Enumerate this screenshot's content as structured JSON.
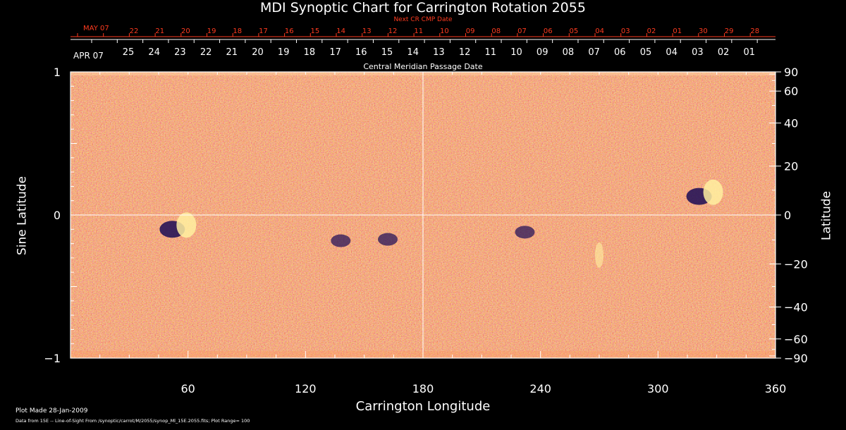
{
  "chart_data": {
    "type": "heatmap",
    "title": "MDI Synoptic Chart for Carrington Rotation 2055",
    "xlabel": "Carrington Longitude",
    "ylabel_left": "Sine Latitude",
    "ylabel_right": "Latitude",
    "xlim": [
      0,
      360
    ],
    "ylim": [
      -1,
      1
    ],
    "x_ticks": [
      60,
      120,
      180,
      240,
      300,
      360
    ],
    "y_ticks_left": [
      {
        "v": 1,
        "label": "1"
      },
      {
        "v": 0,
        "label": "0"
      },
      {
        "v": -1,
        "label": "−1"
      }
    ],
    "y_ticks_right": [
      90,
      60,
      40,
      20,
      0,
      -20,
      -40,
      -60,
      -90
    ],
    "top_axis_current": {
      "month_label": "APR 07",
      "labels": [
        "25",
        "24",
        "23",
        "22",
        "21",
        "20",
        "19",
        "18",
        "17",
        "16",
        "15",
        "14",
        "13",
        "12",
        "11",
        "10",
        "09",
        "08",
        "07",
        "06",
        "05",
        "04",
        "03",
        "02",
        "01"
      ]
    },
    "top_axis_next": {
      "title": "Next CR CMP Date",
      "month_label": "MAY 07",
      "labels": [
        "22",
        "21",
        "20",
        "19",
        "18",
        "17",
        "16",
        "15",
        "14",
        "13",
        "12",
        "11",
        "10",
        "09",
        "08",
        "07",
        "06",
        "05",
        "04",
        "03",
        "02",
        "01",
        "30",
        "29",
        "28"
      ]
    },
    "cmp_axis_label": "Central Meridian Passage Date",
    "active_regions": [
      {
        "lon": 326,
        "lat": 0.13,
        "polarity": "bipolar"
      },
      {
        "lon": 57,
        "lat": -0.1,
        "polarity": "bipolar"
      },
      {
        "lon": 232,
        "lat": -0.12,
        "polarity": "negative"
      },
      {
        "lon": 162,
        "lat": -0.17,
        "polarity": "negative"
      },
      {
        "lon": 270,
        "lat": -0.28,
        "polarity": "positive"
      },
      {
        "lon": 138,
        "lat": -0.18,
        "polarity": "negative"
      }
    ],
    "colors": {
      "field_base": "#e8431c",
      "positive": "#fff0a0",
      "negative": "#1a0a55",
      "grid": "#ffffff",
      "next_axis": "#ff3b1f"
    }
  },
  "footer": {
    "plot_made": "Plot Made 28-Jan-2009",
    "data_from": "Data from 15E -- Line-of-Sight From /synoptic/carrot/M/2055/synop_Ml_15E.2055.fits; Plot Range=  100"
  }
}
